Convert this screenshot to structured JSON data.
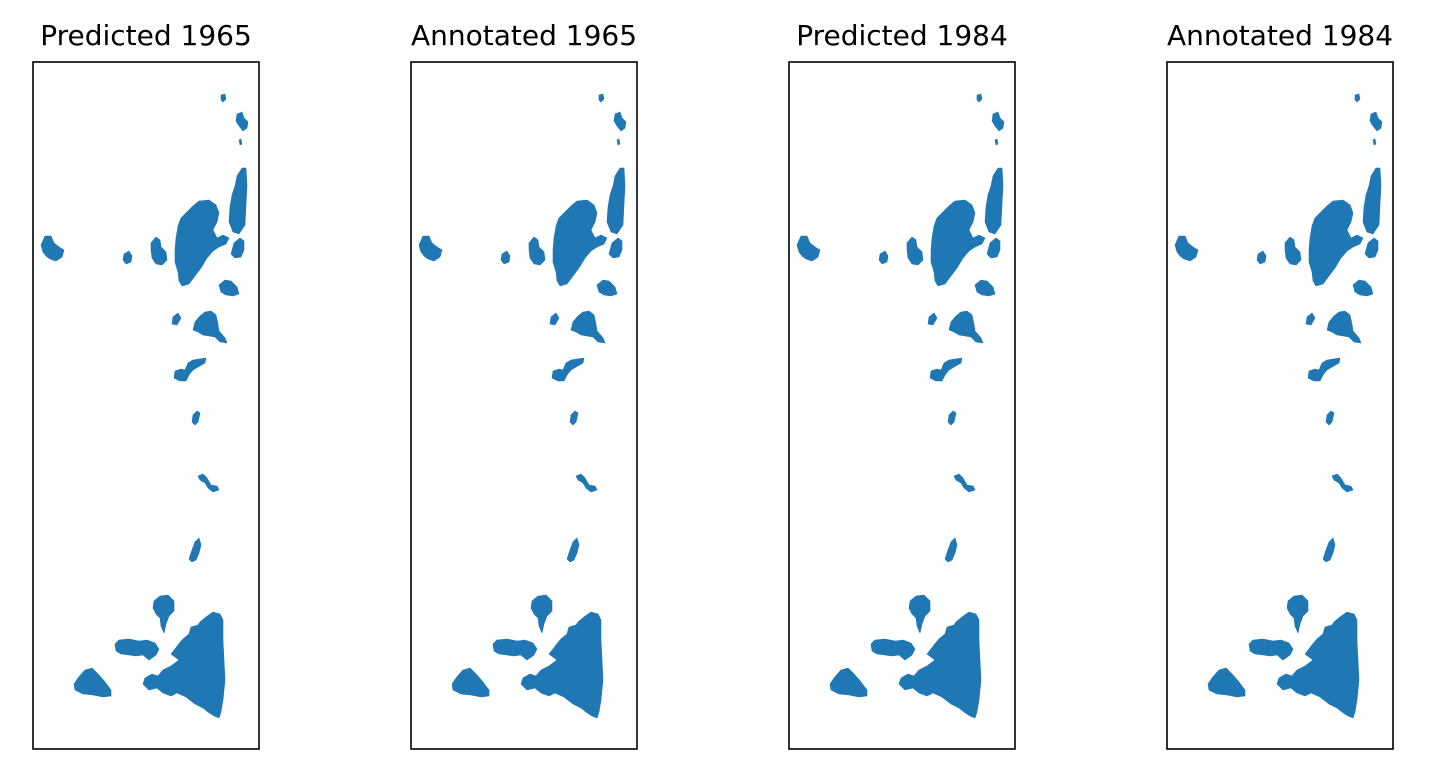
{
  "chart_data": [
    {
      "type": "map",
      "title": "Predicted 1965",
      "xlabel": "",
      "ylabel": "",
      "grid": false,
      "legend": "none",
      "fill_color": "#1f77b4",
      "frame_color": "#000000"
    },
    {
      "type": "map",
      "title": "Annotated 1965",
      "xlabel": "",
      "ylabel": "",
      "grid": false,
      "legend": "none",
      "fill_color": "#1f77b4",
      "frame_color": "#000000"
    },
    {
      "type": "map",
      "title": "Predicted 1984",
      "xlabel": "",
      "ylabel": "",
      "grid": false,
      "legend": "none",
      "fill_color": "#1f77b4",
      "frame_color": "#000000"
    },
    {
      "type": "map",
      "title": "Annotated 1984",
      "xlabel": "",
      "ylabel": "",
      "grid": false,
      "legend": "none",
      "fill_color": "#1f77b4",
      "frame_color": "#000000"
    }
  ]
}
